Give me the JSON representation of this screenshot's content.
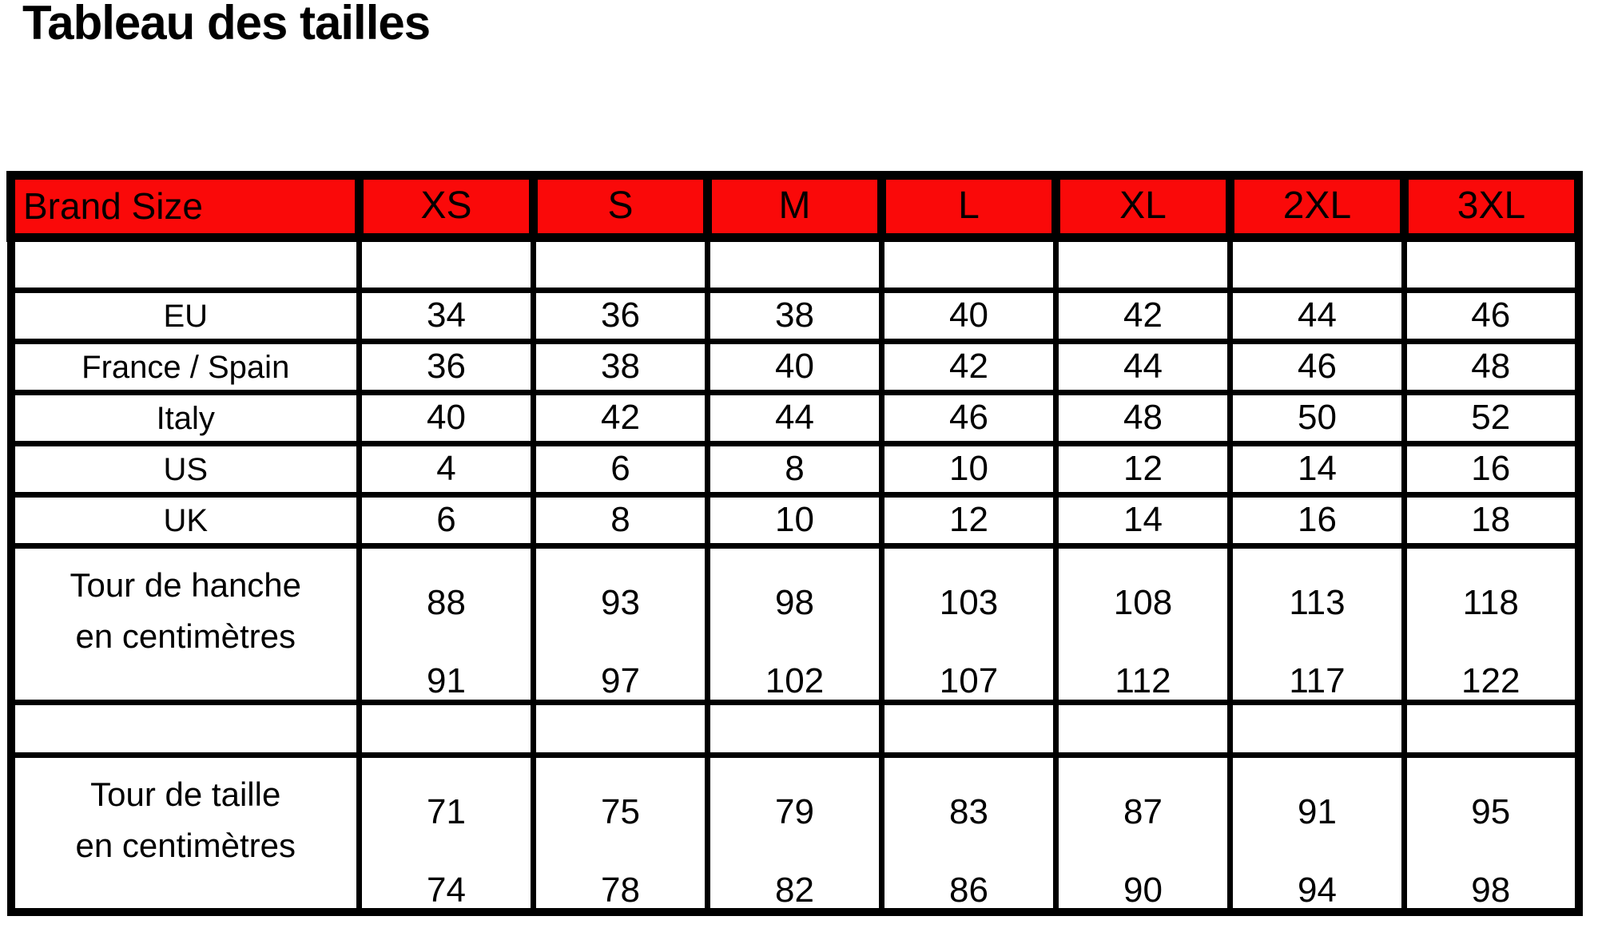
{
  "page": {
    "title": "Tableau des tailles"
  },
  "colors": {
    "header_bg": "#fa0909",
    "border": "#000000",
    "text": "#000000",
    "background": "#ffffff"
  },
  "table": {
    "header": {
      "label": "Brand Size",
      "sizes": [
        "XS",
        "S",
        "M",
        "L",
        "XL",
        "2XL",
        "3XL"
      ]
    },
    "rows": [
      {
        "label": "EU",
        "values": [
          "34",
          "36",
          "38",
          "40",
          "42",
          "44",
          "46"
        ]
      },
      {
        "label": "France / Spain",
        "values": [
          "36",
          "38",
          "40",
          "42",
          "44",
          "46",
          "48"
        ]
      },
      {
        "label": "Italy",
        "values": [
          "40",
          "42",
          "44",
          "46",
          "48",
          "50",
          "52"
        ]
      },
      {
        "label": "US",
        "values": [
          "4",
          "6",
          "8",
          "10",
          "12",
          "14",
          "16"
        ]
      },
      {
        "label": "UK",
        "values": [
          "6",
          "8",
          "10",
          "12",
          "14",
          "16",
          "18"
        ]
      }
    ],
    "measure_rows": [
      {
        "label_line1": "Tour de hanche",
        "label_line2": "en centimètres",
        "values_top": [
          "88",
          "93",
          "98",
          "103",
          "108",
          "113",
          "118"
        ],
        "values_bottom": [
          "91",
          "97",
          "102",
          "107",
          "112",
          "117",
          "122"
        ]
      },
      {
        "label_line1": "Tour de taille",
        "label_line2": "en centimètres",
        "values_top": [
          "71",
          "75",
          "79",
          "83",
          "87",
          "91",
          "95"
        ],
        "values_bottom": [
          "74",
          "78",
          "82",
          "86",
          "90",
          "94",
          "98"
        ]
      }
    ]
  }
}
